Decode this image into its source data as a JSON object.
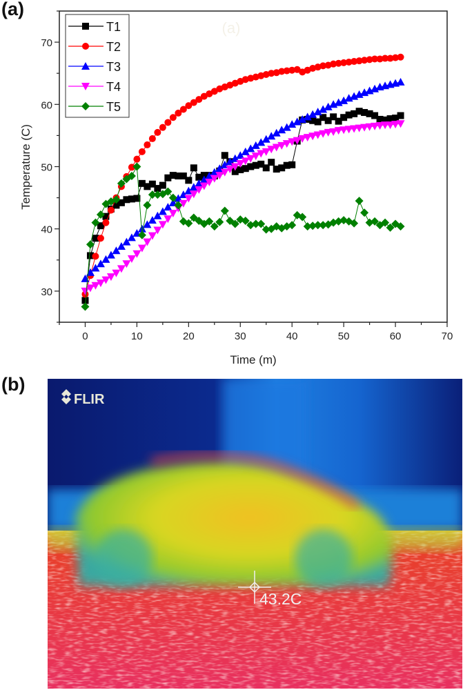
{
  "panel_a_label": "(a)",
  "panel_b_label": "(b)",
  "chart_data": {
    "type": "line",
    "title": "",
    "watermark": "(a)",
    "xlabel": "Time (m)",
    "ylabel": "Temperature (C)",
    "xlim": [
      -5,
      70
    ],
    "ylim": [
      25,
      75
    ],
    "xticks": [
      0,
      10,
      20,
      30,
      40,
      50,
      60,
      70
    ],
    "yticks": [
      30,
      40,
      50,
      60,
      70
    ],
    "grid": false,
    "legend_position": "top-left",
    "x": [
      0,
      1,
      2,
      3,
      4,
      5,
      6,
      7,
      8,
      9,
      10,
      11,
      12,
      13,
      14,
      15,
      16,
      17,
      18,
      19,
      20,
      21,
      22,
      23,
      24,
      25,
      26,
      27,
      28,
      29,
      30,
      31,
      32,
      33,
      34,
      35,
      36,
      37,
      38,
      39,
      40,
      41,
      42,
      43,
      44,
      45,
      46,
      47,
      48,
      49,
      50,
      51,
      52,
      53,
      54,
      55,
      56,
      57,
      58,
      59,
      60,
      61
    ],
    "series": [
      {
        "name": "T1",
        "color": "#000000",
        "marker": "square",
        "values": [
          28.5,
          35.7,
          38.5,
          40.5,
          42,
          43.2,
          43.8,
          44.2,
          44.7,
          44.8,
          44.9,
          47.3,
          46.8,
          47.2,
          46.5,
          47,
          48.2,
          48.6,
          48.5,
          48.5,
          47.8,
          49.8,
          48.3,
          48.6,
          48.6,
          48.5,
          49.3,
          51.8,
          50.8,
          49.2,
          49.5,
          49.7,
          50,
          50.2,
          50.4,
          49.8,
          50.7,
          49.6,
          49.8,
          50.2,
          50.3,
          54.1,
          57.5,
          57.6,
          57.4,
          57.2,
          57.9,
          57.4,
          58,
          57.3,
          57.9,
          58.3,
          58.5,
          58.9,
          58.7,
          58.5,
          58.2,
          57.6,
          57.5,
          57.7,
          57.8,
          58.2
        ]
      },
      {
        "name": "T2",
        "color": "#ff0000",
        "marker": "circle",
        "values": [
          29.5,
          32.5,
          35.6,
          38.5,
          41,
          43,
          45,
          46.8,
          48.4,
          49.9,
          51.2,
          52.4,
          53.5,
          54.5,
          55.5,
          56.3,
          57.1,
          57.9,
          58.6,
          59.2,
          59.8,
          60.3,
          60.8,
          61.3,
          61.7,
          62.1,
          62.5,
          62.8,
          63.1,
          63.4,
          63.7,
          64,
          64.2,
          64.4,
          64.6,
          64.8,
          65,
          65.1,
          65.3,
          65.4,
          65.5,
          65.6,
          65.2,
          65.5,
          65.8,
          66,
          66.2,
          66.3,
          66.5,
          66.6,
          66.7,
          66.8,
          66.9,
          67,
          67.1,
          67.2,
          67.3,
          67.3,
          67.4,
          67.4,
          67.5,
          67.6
        ]
      },
      {
        "name": "T3",
        "color": "#0000ff",
        "marker": "triangle-up",
        "values": [
          32,
          33,
          33.7,
          34.4,
          35.1,
          35.8,
          36.5,
          37.2,
          37.9,
          38.6,
          39.3,
          40,
          40.7,
          41.4,
          42.1,
          42.8,
          43.5,
          44.2,
          44.9,
          45.5,
          46.1,
          46.7,
          47.3,
          47.9,
          48.5,
          49.1,
          49.7,
          50.3,
          50.8,
          51.3,
          51.8,
          52.4,
          52.9,
          53.4,
          53.9,
          54.4,
          54.9,
          55.4,
          55.9,
          56.3,
          56.8,
          57.2,
          57.6,
          58,
          58.4,
          58.8,
          59.2,
          59.6,
          60,
          60.3,
          60.6,
          61,
          61.3,
          61.6,
          61.9,
          62.2,
          62.5,
          62.8,
          63,
          63.2,
          63.4,
          63.6
        ]
      },
      {
        "name": "T4",
        "color": "#ff00ff",
        "marker": "triangle-down",
        "values": [
          30,
          30.5,
          30.9,
          31.3,
          31.8,
          32.3,
          32.9,
          33.6,
          34.4,
          35.2,
          36,
          36.9,
          37.9,
          38.9,
          39.8,
          40.7,
          41.6,
          42.5,
          43.3,
          44.1,
          44.9,
          45.6,
          46.3,
          46.9,
          47.5,
          48.1,
          48.6,
          49.1,
          49.6,
          50,
          50.5,
          50.9,
          51.3,
          51.7,
          52.1,
          52.4,
          52.8,
          53.1,
          53.4,
          53.7,
          54,
          54.2,
          54.5,
          54.7,
          54.9,
          55.1,
          55.3,
          55.5,
          55.6,
          55.8,
          55.9,
          56,
          56.1,
          56.2,
          56.3,
          56.4,
          56.5,
          56.6,
          56.7,
          56.7,
          56.8,
          56.9
        ]
      },
      {
        "name": "T5",
        "color": "#008000",
        "marker": "diamond",
        "values": [
          27.5,
          37.5,
          41,
          42.3,
          44,
          44.4,
          44.7,
          47.3,
          48,
          48.5,
          50,
          39,
          43.8,
          45.5,
          45.5,
          45.6,
          46,
          45,
          43.8,
          41.2,
          40.9,
          41.8,
          41.3,
          40.8,
          41.2,
          40.4,
          41.1,
          42.9,
          41.3,
          40.8,
          41.5,
          41.3,
          40.6,
          40.8,
          40.8,
          39.9,
          40,
          40.4,
          40.1,
          40.4,
          40.6,
          42.2,
          41.9,
          40.4,
          40.5,
          40.6,
          40.6,
          40.7,
          41,
          41.2,
          41.4,
          41.2,
          40.9,
          44.5,
          42.6,
          41,
          41.2,
          40.6,
          41,
          40.2,
          40.8,
          40.4
        ]
      }
    ]
  },
  "thermal_image": {
    "brand": "FLIR",
    "spot_reading": "43.2C"
  }
}
